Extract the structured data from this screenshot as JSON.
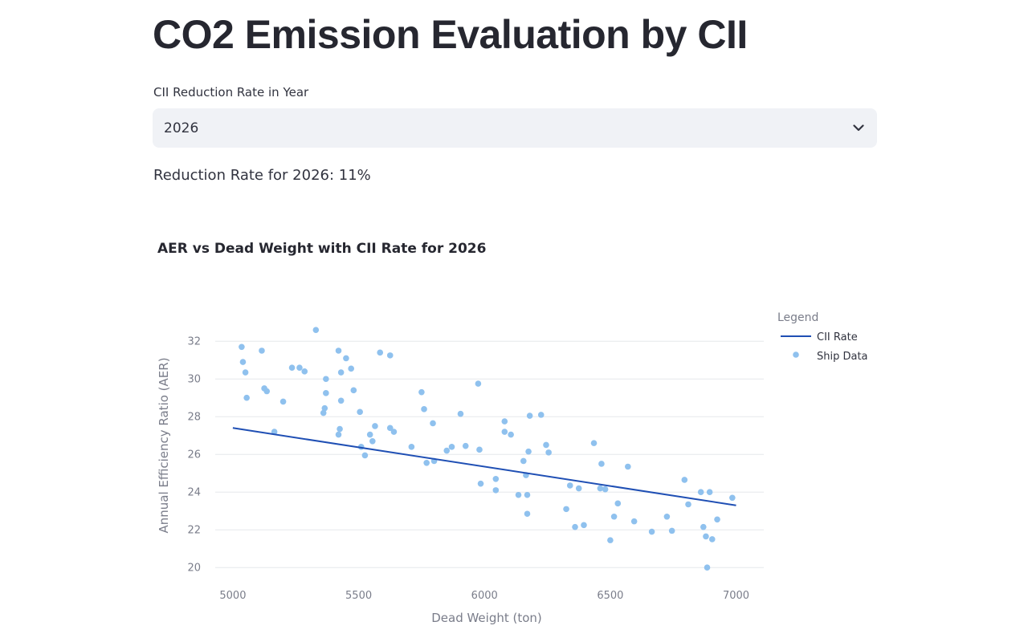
{
  "page": {
    "title": "CO2 Emission Evaluation by CII",
    "select_label": "CII Reduction Rate in Year",
    "select_value": "2026",
    "rate_text": "Reduction Rate for 2026: 11%"
  },
  "icons": {
    "dropdown": "chevron-down-icon"
  },
  "colors": {
    "line": "#1f4fb4",
    "points": "#8fc1ee",
    "grid": "#e6e8ec"
  },
  "chart_data": {
    "type": "scatter",
    "title": "AER vs Dead Weight with CII Rate for 2026",
    "xlabel": "Dead Weight (ton)",
    "ylabel": "Annual Efficiency Ratio (AER)",
    "xlim": [
      4930,
      7110
    ],
    "ylim": [
      19.2,
      33.5
    ],
    "xticks": [
      5000,
      5500,
      6000,
      6500,
      7000
    ],
    "yticks": [
      20,
      22,
      24,
      26,
      28,
      30,
      32
    ],
    "grid": true,
    "legend": {
      "title": "Legend",
      "placement": "right",
      "entries": [
        "CII Rate",
        "Ship Data"
      ]
    },
    "series": [
      {
        "name": "CII Rate",
        "kind": "line",
        "points": [
          [
            5000,
            27.4
          ],
          [
            7000,
            23.3
          ]
        ]
      },
      {
        "name": "Ship Data",
        "kind": "scatter",
        "points": [
          [
            5035,
            31.7
          ],
          [
            5040,
            30.9
          ],
          [
            5050,
            30.35
          ],
          [
            5055,
            29.0
          ],
          [
            5115,
            31.5
          ],
          [
            5125,
            29.5
          ],
          [
            5135,
            29.35
          ],
          [
            5165,
            27.2
          ],
          [
            5200,
            28.8
          ],
          [
            5235,
            30.6
          ],
          [
            5265,
            30.6
          ],
          [
            5285,
            30.4
          ],
          [
            5330,
            32.6
          ],
          [
            5360,
            28.2
          ],
          [
            5365,
            28.45
          ],
          [
            5370,
            30.0
          ],
          [
            5370,
            29.25
          ],
          [
            5420,
            27.05
          ],
          [
            5420,
            31.5
          ],
          [
            5425,
            27.35
          ],
          [
            5430,
            30.35
          ],
          [
            5430,
            28.85
          ],
          [
            5450,
            31.1
          ],
          [
            5470,
            30.55
          ],
          [
            5480,
            29.4
          ],
          [
            5505,
            28.25
          ],
          [
            5510,
            26.4
          ],
          [
            5525,
            25.95
          ],
          [
            5545,
            27.05
          ],
          [
            5555,
            26.7
          ],
          [
            5565,
            27.5
          ],
          [
            5585,
            31.4
          ],
          [
            5625,
            31.25
          ],
          [
            5625,
            27.4
          ],
          [
            5640,
            27.2
          ],
          [
            5710,
            26.4
          ],
          [
            5750,
            29.3
          ],
          [
            5760,
            28.4
          ],
          [
            5770,
            25.55
          ],
          [
            5795,
            27.65
          ],
          [
            5800,
            25.65
          ],
          [
            5850,
            26.2
          ],
          [
            5870,
            26.4
          ],
          [
            5905,
            28.15
          ],
          [
            5925,
            26.45
          ],
          [
            5975,
            29.75
          ],
          [
            5980,
            26.25
          ],
          [
            5985,
            24.45
          ],
          [
            6045,
            24.7
          ],
          [
            6045,
            24.1
          ],
          [
            6080,
            27.75
          ],
          [
            6080,
            27.2
          ],
          [
            6105,
            27.05
          ],
          [
            6135,
            23.85
          ],
          [
            6155,
            25.65
          ],
          [
            6165,
            24.9
          ],
          [
            6170,
            22.85
          ],
          [
            6170,
            23.85
          ],
          [
            6175,
            26.15
          ],
          [
            6180,
            28.05
          ],
          [
            6225,
            28.1
          ],
          [
            6245,
            26.5
          ],
          [
            6255,
            26.1
          ],
          [
            6325,
            23.1
          ],
          [
            6340,
            24.35
          ],
          [
            6360,
            22.15
          ],
          [
            6375,
            24.2
          ],
          [
            6395,
            22.25
          ],
          [
            6435,
            26.6
          ],
          [
            6460,
            24.2
          ],
          [
            6465,
            25.5
          ],
          [
            6480,
            24.15
          ],
          [
            6500,
            21.45
          ],
          [
            6515,
            22.7
          ],
          [
            6530,
            23.4
          ],
          [
            6570,
            25.35
          ],
          [
            6595,
            22.45
          ],
          [
            6665,
            21.9
          ],
          [
            6725,
            22.7
          ],
          [
            6745,
            21.95
          ],
          [
            6795,
            24.65
          ],
          [
            6810,
            23.35
          ],
          [
            6860,
            24.0
          ],
          [
            6870,
            22.15
          ],
          [
            6880,
            21.65
          ],
          [
            6885,
            20.0
          ],
          [
            6895,
            24.0
          ],
          [
            6905,
            21.5
          ],
          [
            6925,
            22.55
          ],
          [
            6985,
            23.7
          ]
        ]
      }
    ]
  }
}
